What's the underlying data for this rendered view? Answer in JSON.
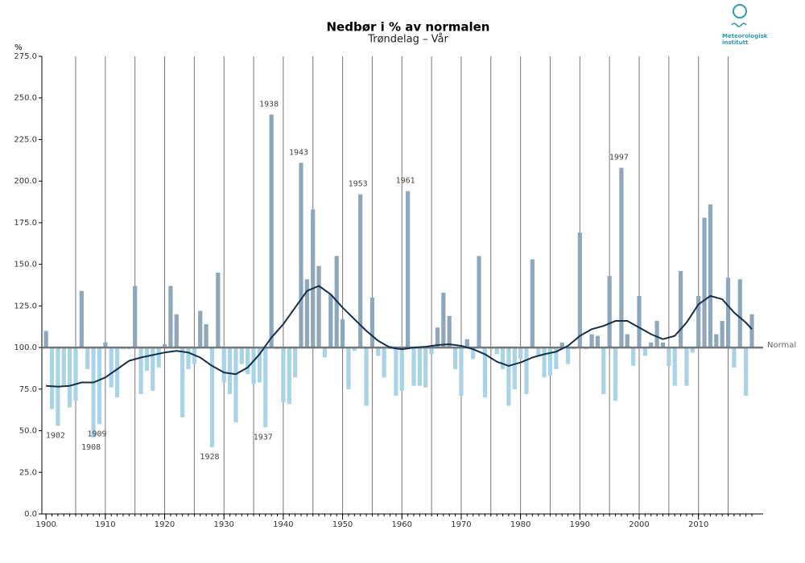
{
  "chart_data": {
    "type": "bar",
    "title": "Nedbør i % av normalen",
    "subtitle": "Trøndelag – Vår",
    "y_unit": "%",
    "logo": [
      "Meteorologisk",
      "institutt"
    ],
    "categories": [
      1900,
      1901,
      1902,
      1903,
      1904,
      1905,
      1906,
      1907,
      1908,
      1909,
      1910,
      1911,
      1912,
      1913,
      1914,
      1915,
      1916,
      1917,
      1918,
      1919,
      1920,
      1921,
      1922,
      1923,
      1924,
      1925,
      1926,
      1927,
      1928,
      1929,
      1930,
      1931,
      1932,
      1933,
      1934,
      1935,
      1936,
      1937,
      1938,
      1939,
      1940,
      1941,
      1942,
      1943,
      1944,
      1945,
      1946,
      1947,
      1948,
      1949,
      1950,
      1951,
      1952,
      1953,
      1954,
      1955,
      1956,
      1957,
      1958,
      1959,
      1960,
      1961,
      1962,
      1963,
      1964,
      1965,
      1966,
      1967,
      1968,
      1969,
      1970,
      1971,
      1972,
      1973,
      1974,
      1975,
      1976,
      1977,
      1978,
      1979,
      1980,
      1981,
      1982,
      1983,
      1984,
      1985,
      1986,
      1987,
      1988,
      1989,
      1990,
      1991,
      1992,
      1993,
      1994,
      1995,
      1996,
      1997,
      1998,
      1999,
      2000,
      2001,
      2002,
      2003,
      2004,
      2005,
      2006,
      2007,
      2008,
      2009,
      2010,
      2011,
      2012,
      2013,
      2014,
      2015,
      2016,
      2017,
      2018,
      2019
    ],
    "values": [
      110,
      63,
      53,
      77,
      64,
      68,
      134,
      87,
      46,
      54,
      103,
      76,
      70,
      99,
      99,
      137,
      72,
      86,
      74,
      88,
      102,
      137,
      120,
      58,
      87,
      90,
      122,
      114,
      40,
      145,
      79,
      72,
      55,
      90,
      84,
      78,
      79,
      52,
      240,
      99,
      67,
      66,
      82,
      211,
      141,
      183,
      149,
      94,
      132,
      155,
      117,
      75,
      98,
      192,
      65,
      130,
      95,
      82,
      101,
      71,
      74,
      194,
      77,
      77,
      76,
      96,
      112,
      133,
      119,
      87,
      71,
      105,
      93,
      155,
      70,
      99,
      96,
      87,
      65,
      75,
      93,
      72,
      153,
      95,
      82,
      83,
      87,
      103,
      90,
      99,
      169,
      99,
      108,
      107,
      72,
      143,
      68,
      208,
      108,
      89,
      131,
      95,
      103,
      116,
      103,
      89,
      77,
      146,
      77,
      97,
      131,
      178,
      186,
      108,
      116,
      142,
      88,
      141,
      71,
      120
    ],
    "color_above": "#8ea7bd",
    "color_below": "#a9d3e6",
    "smooth": {
      "color": "#14304d",
      "x": [
        1900,
        1902,
        1904,
        1906,
        1908,
        1910,
        1912,
        1914,
        1916,
        1918,
        1920,
        1922,
        1924,
        1926,
        1928,
        1930,
        1932,
        1934,
        1936,
        1938,
        1940,
        1942,
        1944,
        1946,
        1948,
        1950,
        1952,
        1954,
        1956,
        1958,
        1960,
        1962,
        1964,
        1966,
        1968,
        1970,
        1972,
        1974,
        1976,
        1978,
        1980,
        1982,
        1984,
        1986,
        1988,
        1990,
        1992,
        1994,
        1996,
        1998,
        2000,
        2002,
        2004,
        2006,
        2008,
        2010,
        2012,
        2014,
        2016,
        2018,
        2019
      ],
      "values": [
        77,
        76.5,
        77,
        79,
        79,
        82,
        87,
        92,
        94,
        95.5,
        97,
        98,
        97,
        94,
        89,
        85,
        84,
        88,
        96,
        106,
        114,
        124,
        134,
        137,
        132,
        124,
        117,
        110,
        104,
        100,
        99,
        100,
        100.5,
        101.5,
        102,
        101,
        99,
        96,
        91.5,
        89,
        91,
        94,
        96,
        97.5,
        101,
        107,
        111,
        113,
        116,
        116,
        112,
        108,
        105,
        107,
        115,
        126,
        131,
        129,
        121,
        115,
        111
      ]
    },
    "baseline": {
      "value": 100,
      "label": "Normal"
    },
    "annotations": [
      "1902",
      "1908",
      "1909",
      "1928",
      "1937",
      "1938",
      "1943",
      "1953",
      "1961",
      "1997"
    ],
    "xlim": [
      1899.3,
      2020.9
    ],
    "xticks": [
      1900,
      1910,
      1920,
      1930,
      1940,
      1950,
      1960,
      1970,
      1980,
      1990,
      2000,
      2010
    ],
    "xgrid": [
      1905,
      1910,
      1915,
      1920,
      1925,
      1930,
      1935,
      1940,
      1945,
      1950,
      1955,
      1960,
      1965,
      1970,
      1975,
      1980,
      1985,
      1990,
      1995,
      2000,
      2005,
      2010,
      2015
    ],
    "ylim": [
      0,
      275
    ],
    "yticks": [
      {
        "value": 0,
        "label": "0.0"
      },
      {
        "value": 25,
        "label": "25.0"
      },
      {
        "value": 50,
        "label": "50.0"
      },
      {
        "value": 75,
        "label": "75.0"
      },
      {
        "value": 100,
        "label": "100.0"
      },
      {
        "value": 125,
        "label": "125.0"
      },
      {
        "value": 150,
        "label": "150.0"
      },
      {
        "value": 175,
        "label": "175.0"
      },
      {
        "value": 200,
        "label": "200.0"
      },
      {
        "value": 225,
        "label": "225.0"
      },
      {
        "value": 250,
        "label": "250.0"
      },
      {
        "value": 275,
        "label": "275.0"
      }
    ],
    "grid": true
  }
}
